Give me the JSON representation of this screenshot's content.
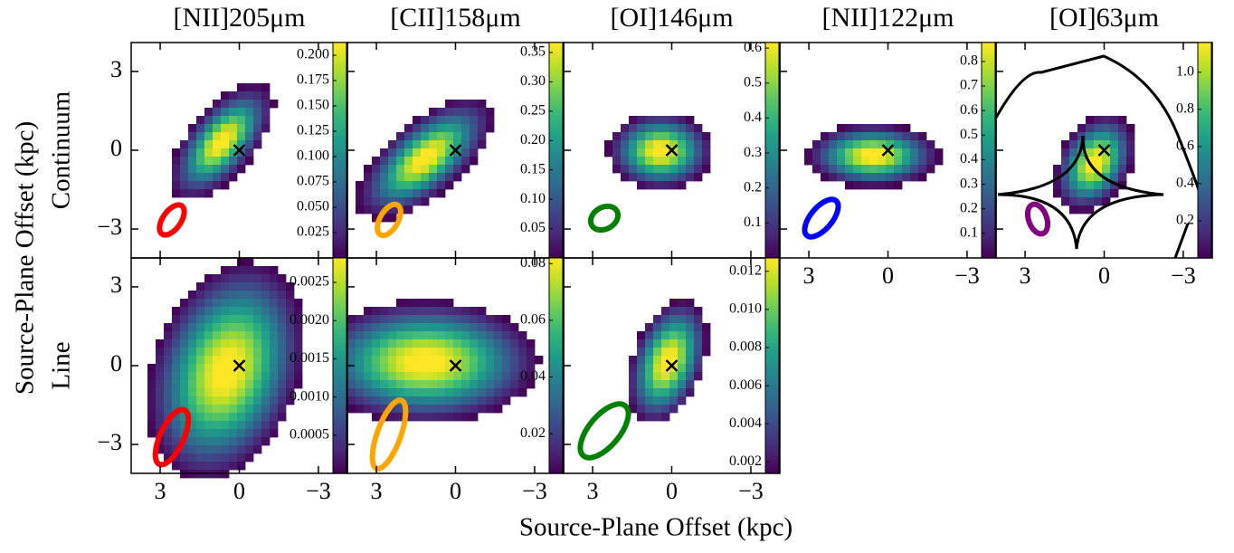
{
  "figure": {
    "xlabel": "Source-Plane Offset (kpc)",
    "ylabel": "Source-Plane Offset (kpc)",
    "row_labels": [
      "Continuum",
      "Line"
    ]
  },
  "chart_data": [
    {
      "type": "image",
      "title": "[NII]205μm",
      "xlim": [
        4.1,
        -4.1
      ],
      "ylim": [
        -4.1,
        4.1
      ],
      "xticks": [
        3,
        0,
        -3
      ],
      "yticks": [
        {
          "value": -3,
          "label": "−3"
        },
        0,
        3
      ],
      "xticklabels": false,
      "yticklabels": true,
      "beam_color": "#ff0000",
      "marker": {
        "x": 0,
        "y": 0
      },
      "colorbar": {
        "lim": [
          0,
          0.2125
        ],
        "ticks": [
          0.025,
          {
            "value": 0.05,
            "label": "0.050"
          },
          0.075,
          {
            "value": 0.1,
            "label": "0.100"
          },
          0.125,
          {
            "value": 0.15,
            "label": "0.150"
          },
          0.175,
          {
            "value": 0.2,
            "label": "0.200"
          }
        ]
      }
    },
    {
      "type": "image",
      "title": "[CII]158μm",
      "xlim": [
        4.1,
        -4.1
      ],
      "ylim": [
        -4.1,
        4.1
      ],
      "xticks": [
        3,
        0,
        -3
      ],
      "yticks": [
        -3,
        0,
        3
      ],
      "xticklabels": false,
      "yticklabels": false,
      "beam_color": "#ffa500",
      "marker": {
        "x": 0,
        "y": 0
      },
      "colorbar": {
        "lim": [
          0,
          0.367
        ],
        "ticks": [
          0.05,
          {
            "value": 0.1,
            "label": "0.10"
          },
          0.15,
          {
            "value": 0.2,
            "label": "0.20"
          },
          0.25,
          {
            "value": 0.3,
            "label": "0.30"
          },
          0.35
        ]
      }
    },
    {
      "type": "image",
      "title": "[OI]146μm",
      "xlim": [
        4.1,
        -4.1
      ],
      "ylim": [
        -4.1,
        4.1
      ],
      "xticks": [
        3,
        0,
        -3
      ],
      "yticks": [
        -3,
        0,
        3
      ],
      "xticklabels": false,
      "yticklabels": false,
      "beam_color": "#008000",
      "marker": {
        "x": 0,
        "y": 0
      },
      "colorbar": {
        "lim": [
          0,
          0.616
        ],
        "ticks": [
          0.1,
          0.2,
          0.3,
          0.4,
          0.5,
          0.6
        ]
      }
    },
    {
      "type": "image",
      "title": "[NII]122μm",
      "xlim": [
        4.1,
        -4.1
      ],
      "ylim": [
        -4.1,
        4.1
      ],
      "xticks": [
        3,
        0,
        {
          "value": -3,
          "label": "−3"
        }
      ],
      "yticks": [
        -3,
        0,
        3
      ],
      "xticklabels": true,
      "yticklabels": false,
      "beam_color": "#0000ff",
      "marker": {
        "x": 0,
        "y": 0
      },
      "colorbar": {
        "lim": [
          0,
          0.877
        ],
        "ticks": [
          0.1,
          0.2,
          0.3,
          0.4,
          0.5,
          0.6,
          0.7,
          0.8
        ]
      }
    },
    {
      "type": "image",
      "title": "[OI]63μm",
      "xlim": [
        4.1,
        -4.1
      ],
      "ylim": [
        -4.1,
        4.1
      ],
      "xticks": [
        3,
        0,
        {
          "value": -3,
          "label": "−3"
        }
      ],
      "yticks": [
        -3,
        0,
        3
      ],
      "xticklabels": true,
      "yticklabels": false,
      "beam_color": "#800080",
      "marker": {
        "x": 0,
        "y": 0
      },
      "caustics": true,
      "colorbar": {
        "lim": [
          0,
          1.16
        ],
        "ticks": [
          0.2,
          0.4,
          0.6,
          0.8,
          {
            "value": 1,
            "label": "1.0"
          }
        ]
      }
    },
    {
      "type": "image",
      "xlim": [
        4.1,
        -4.1
      ],
      "ylim": [
        -4.1,
        4.1
      ],
      "xticks": [
        3,
        0,
        {
          "value": -3,
          "label": "−3"
        }
      ],
      "yticks": [
        {
          "value": -3,
          "label": "−3"
        },
        0,
        3
      ],
      "xticklabels": true,
      "yticklabels": true,
      "beam_color": "#ff0000",
      "marker": {
        "x": 0,
        "y": 0
      },
      "colorbar": {
        "lim": [
          0,
          0.00282
        ],
        "ticks": [
          0.0005,
          {
            "value": 0.001,
            "label": "0.0010"
          },
          0.0015,
          {
            "value": 0.002,
            "label": "0.0020"
          },
          0.0025
        ]
      }
    },
    {
      "type": "image",
      "xlim": [
        4.1,
        -4.1
      ],
      "ylim": [
        -4.1,
        4.1
      ],
      "xticks": [
        3,
        0,
        {
          "value": -3,
          "label": "−3"
        }
      ],
      "yticks": [
        -3,
        0,
        3
      ],
      "xticklabels": true,
      "yticklabels": false,
      "beam_color": "#ffa500",
      "marker": {
        "x": 0,
        "y": 0
      },
      "colorbar": {
        "lim": [
          0.006,
          0.082
        ],
        "ticks": [
          0.02,
          0.04,
          0.06,
          0.08
        ]
      }
    },
    {
      "type": "image",
      "xlim": [
        4.1,
        -4.1
      ],
      "ylim": [
        -4.1,
        4.1
      ],
      "xticks": [
        3,
        0,
        {
          "value": -3,
          "label": "−3"
        }
      ],
      "yticks": [
        -3,
        0,
        3
      ],
      "xticklabels": true,
      "yticklabels": false,
      "beam_color": "#008000",
      "marker": {
        "x": 0,
        "y": 0
      },
      "colorbar": {
        "lim": [
          0.0014,
          0.0127
        ],
        "ticks": [
          0.002,
          0.004,
          0.006,
          0.008,
          {
            "value": 0.01,
            "label": "0.010"
          },
          0.012
        ]
      }
    }
  ]
}
